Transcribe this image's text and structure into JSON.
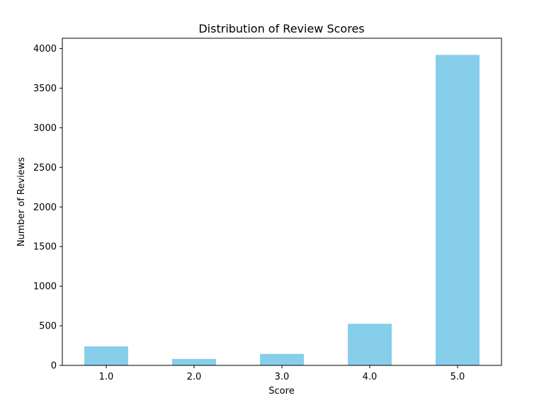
{
  "chart_data": {
    "type": "bar",
    "title": "Distribution of Review Scores",
    "xlabel": "Score",
    "ylabel": "Number of Reviews",
    "categories": [
      "1.0",
      "2.0",
      "3.0",
      "4.0",
      "5.0"
    ],
    "values": [
      240,
      82,
      145,
      525,
      3920
    ],
    "ylim": [
      0,
      4130
    ],
    "yticks": [
      0,
      500,
      1000,
      1500,
      2000,
      2500,
      3000,
      3500,
      4000
    ],
    "bar_color": "#87CEEB",
    "grid": false,
    "legend": "none"
  }
}
